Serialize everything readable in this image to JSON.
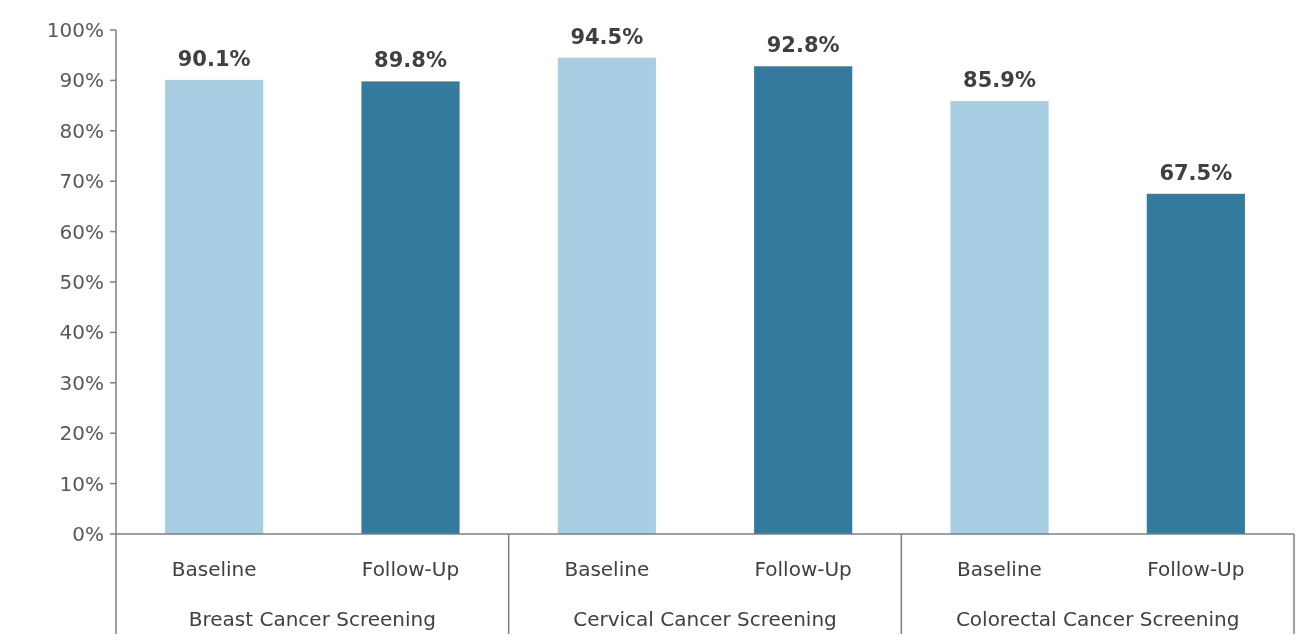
{
  "chart_data": {
    "type": "bar",
    "categories": [
      "Breast Cancer Screening",
      "Cervical Cancer Screening",
      "Colorectal Cancer Screening"
    ],
    "series": [
      {
        "name": "Baseline",
        "color": "#a7cee2",
        "values": [
          90.1,
          94.5,
          85.9
        ],
        "value_labels": [
          "90.1%",
          "94.5%",
          "85.9%"
        ]
      },
      {
        "name": "Follow-Up",
        "color": "#337a9e",
        "values": [
          89.8,
          92.8,
          67.5
        ],
        "value_labels": [
          "89.8%",
          "92.8%",
          "67.5%"
        ]
      }
    ],
    "ylim": [
      0,
      100
    ],
    "yticks": [
      {
        "value": 0,
        "label": "0%"
      },
      {
        "value": 10,
        "label": "10%"
      },
      {
        "value": 20,
        "label": "20%"
      },
      {
        "value": 30,
        "label": "30%"
      },
      {
        "value": 40,
        "label": "40%"
      },
      {
        "value": 50,
        "label": "50%"
      },
      {
        "value": 60,
        "label": "60%"
      },
      {
        "value": 70,
        "label": "70%"
      },
      {
        "value": 80,
        "label": "80%"
      },
      {
        "value": 90,
        "label": "90%"
      },
      {
        "value": 100,
        "label": "100%"
      }
    ],
    "grid": false,
    "legend": false
  }
}
